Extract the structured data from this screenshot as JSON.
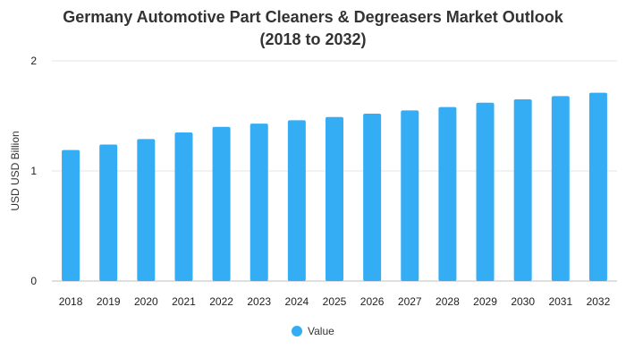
{
  "chart_data": {
    "type": "bar",
    "title": "Germany Automotive Part Cleaners & Degreasers Market Outlook",
    "subtitle": "(2018 to 2032)",
    "xlabel": "",
    "ylabel": "USD USD Billion",
    "ylim": [
      0,
      2
    ],
    "yticks": [
      "0",
      "1",
      "2"
    ],
    "categories": [
      "2018",
      "2019",
      "2020",
      "2021",
      "2022",
      "2023",
      "2024",
      "2025",
      "2026",
      "2027",
      "2028",
      "2029",
      "2030",
      "2031",
      "2032"
    ],
    "series": [
      {
        "name": "Value",
        "values": [
          1.19,
          1.24,
          1.29,
          1.35,
          1.4,
          1.43,
          1.46,
          1.49,
          1.52,
          1.55,
          1.58,
          1.62,
          1.65,
          1.68,
          1.71
        ]
      }
    ],
    "colors": {
      "bar": "#35adf5",
      "grid": "#e6e6e6",
      "baseline": "#bfbfbf"
    },
    "grid": true,
    "legend_position": "bottom"
  }
}
